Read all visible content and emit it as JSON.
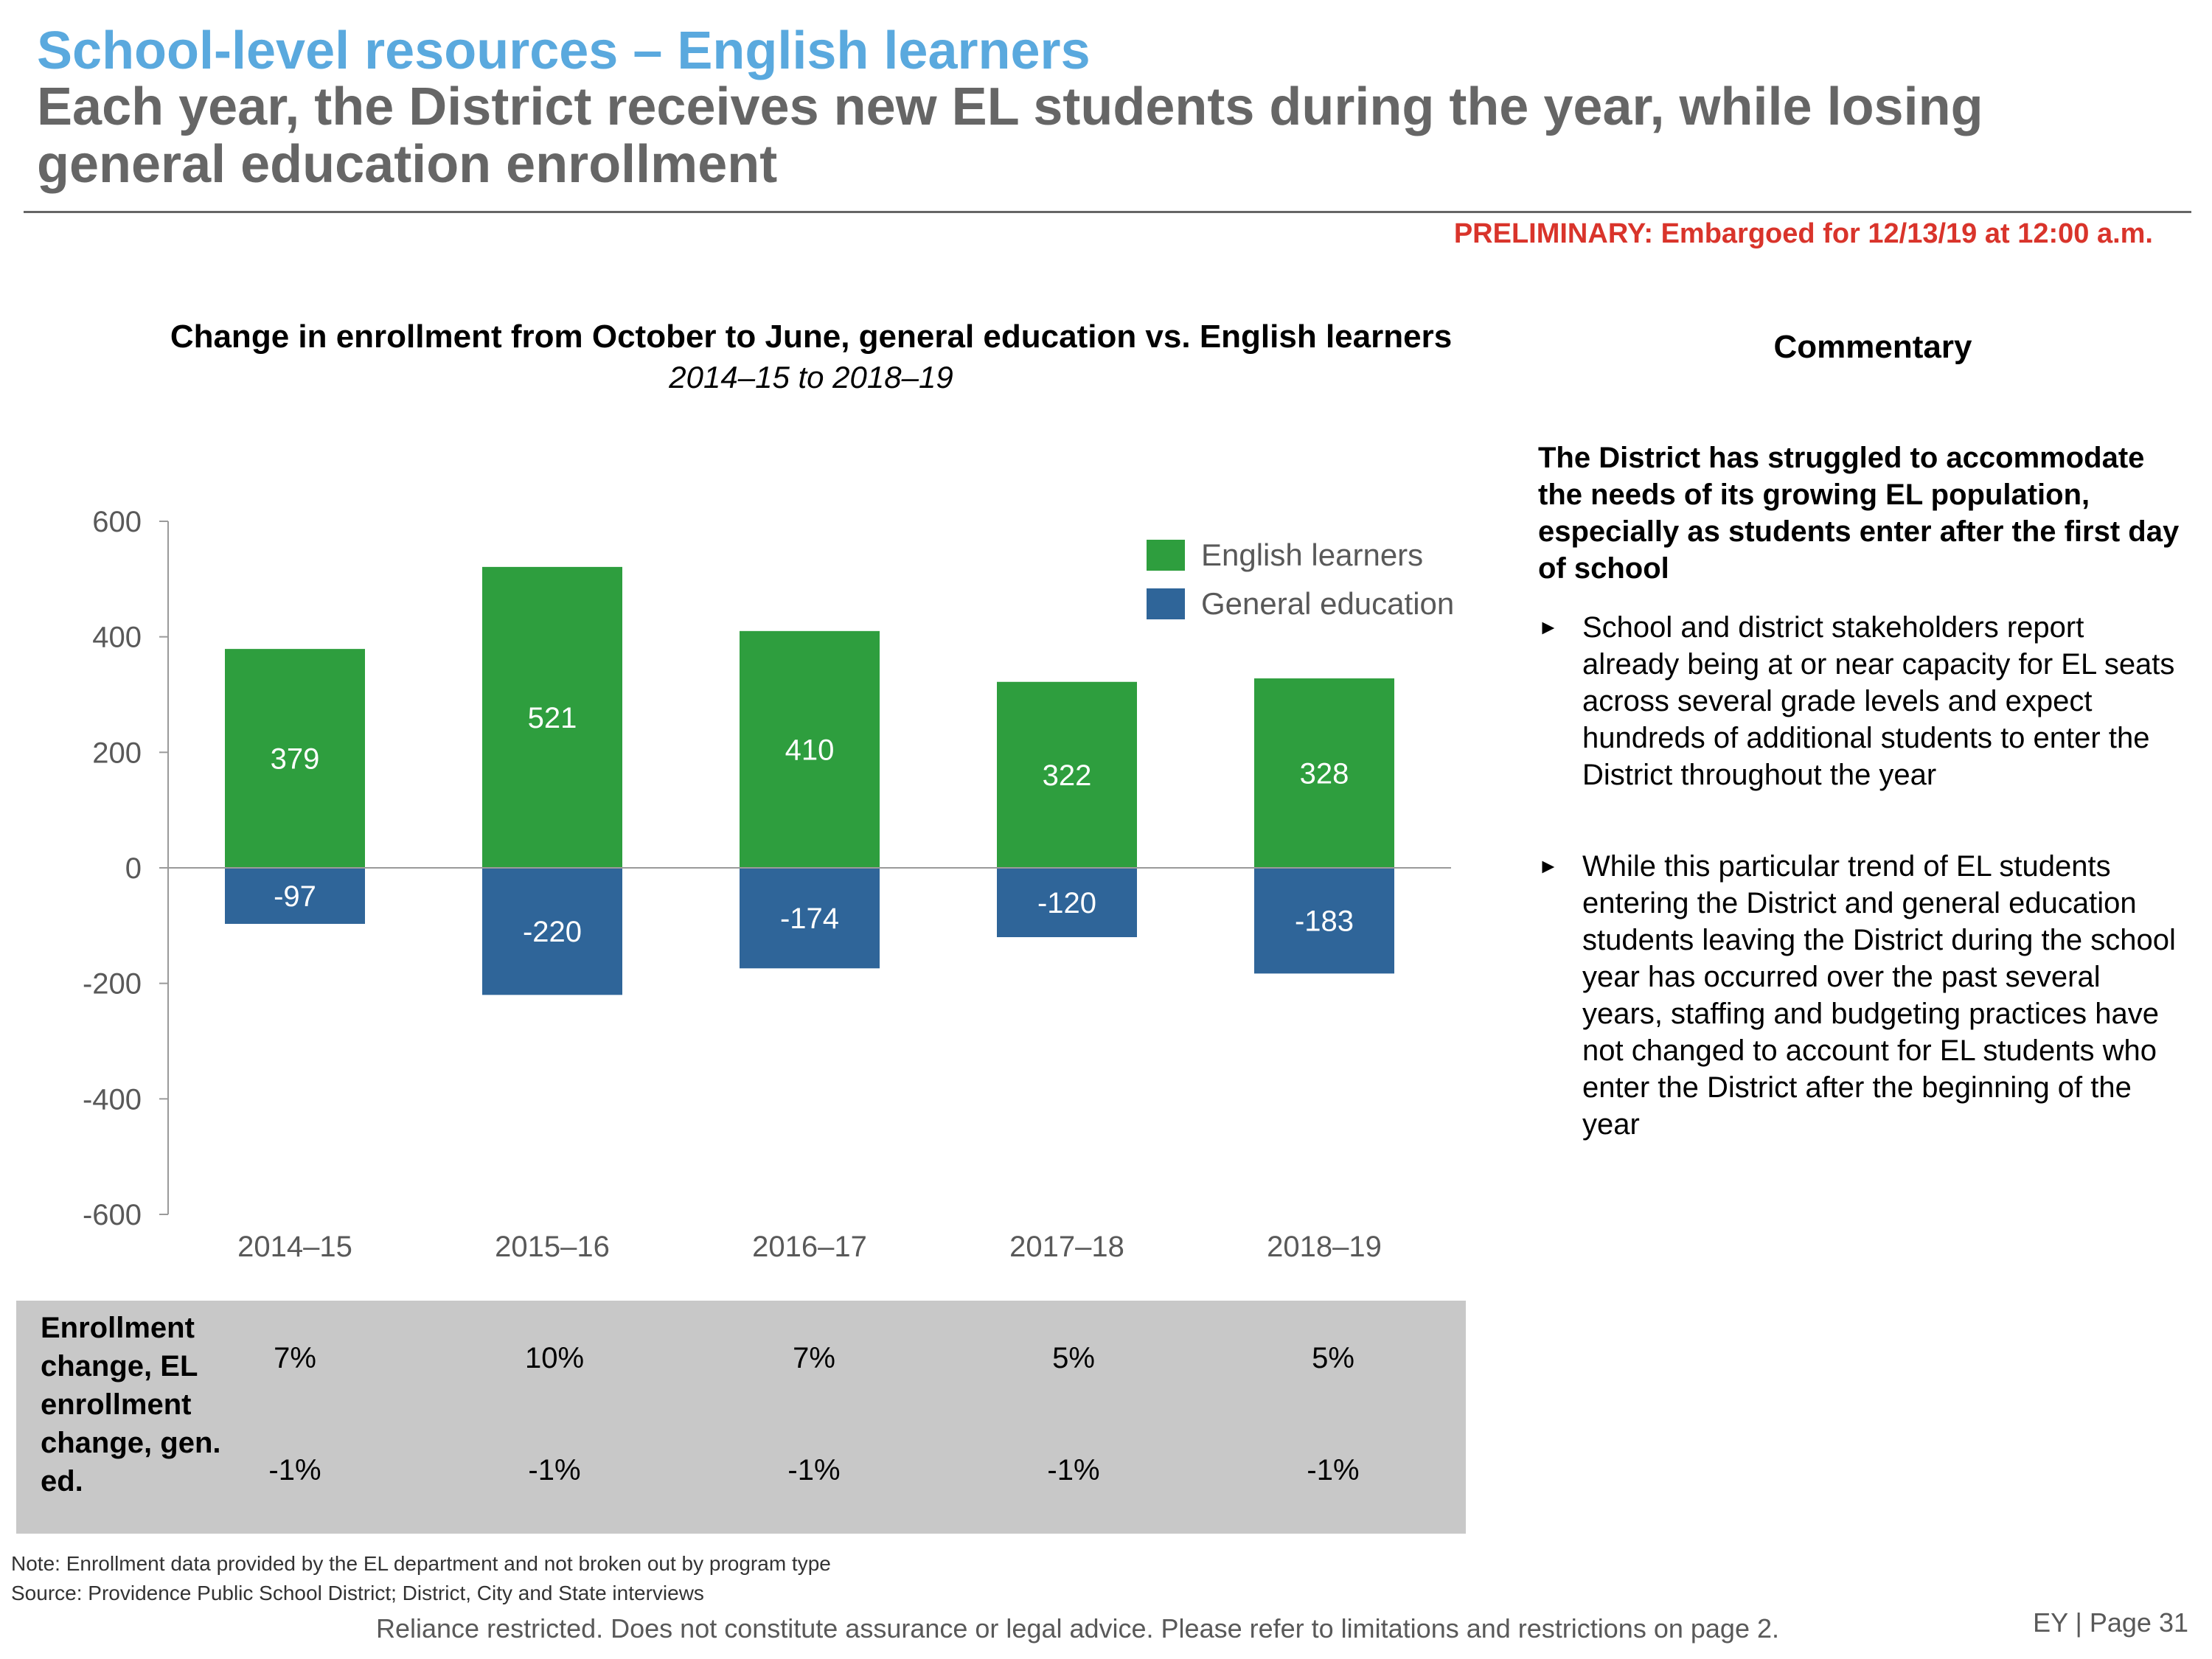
{
  "header": {
    "title": "School-level resources – English learners",
    "subtitle": "Each year, the District receives new EL students during the year, while losing general education enrollment",
    "preliminary": "PRELIMINARY: Embargoed for 12/13/19 at 12:00 a.m."
  },
  "colors": {
    "english_learners": "#2e9e3e",
    "general_education": "#2f6599",
    "title_blue": "#5aa9de",
    "preliminary_red": "#d9342b"
  },
  "chart_data": {
    "type": "bar",
    "stacked": true,
    "title": "Change in enrollment from October to June, general education vs. English learners",
    "subtitle": "2014–15 to 2018–19",
    "categories": [
      "2014–15",
      "2015–16",
      "2016–17",
      "2017–18",
      "2018–19"
    ],
    "series": [
      {
        "name": "English learners",
        "values": [
          379,
          521,
          410,
          322,
          328
        ]
      },
      {
        "name": "General education",
        "values": [
          -97,
          -220,
          -174,
          -120,
          -183
        ]
      }
    ],
    "ylim": [
      -600,
      600
    ],
    "yticks": [
      "600",
      "400",
      "200",
      "0",
      "-200",
      "-400",
      "-600"
    ],
    "ytick_values": [
      600,
      400,
      200,
      0,
      -200,
      -400,
      -600
    ],
    "legend_position": "top-right",
    "xlabel": "",
    "ylabel": ""
  },
  "table": {
    "row_label": "Enrollment change, EL enrollment change, gen. ed.",
    "el_change": [
      "7%",
      "10%",
      "7%",
      "5%",
      "5%"
    ],
    "gen_ed_change": [
      "-1%",
      "-1%",
      "-1%",
      "-1%",
      "-1%"
    ]
  },
  "commentary": {
    "title": "Commentary",
    "lead": "The District has struggled to accommodate the needs of its growing EL population, especially as students enter after the first day of school",
    "bullet_icon": "►",
    "bullets": [
      "School and district stakeholders report already being at or near capacity for EL seats across several grade levels and expect hundreds of additional students to enter the District throughout the year",
      "While this particular trend of EL students entering the District and general education students leaving the District during the school year has occurred over the past several years, staffing and budgeting practices have not changed to account for EL students who enter the District after the beginning of the year"
    ]
  },
  "footer": {
    "note": "Note: Enrollment data provided by the EL department and not broken out by program type",
    "source": "Source: Providence Public School District; District, City and State interviews",
    "disclaimer": "Reliance restricted. Does not constitute assurance or legal advice. Please refer to limitations and restrictions on page 2.",
    "page": "EY | Page 31"
  }
}
